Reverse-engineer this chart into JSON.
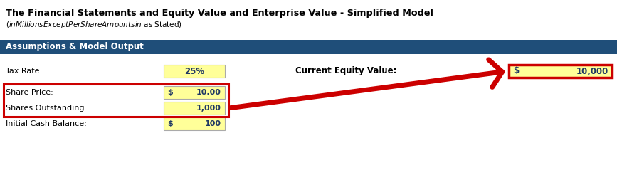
{
  "title": "The Financial Statements and Equity Value and Enterprise Value - Simplified Model",
  "subtitle": "($ in Millions Except Per Share Amounts in $ as Stated)",
  "section_header": "Assumptions & Model Output",
  "section_header_bg": "#1F4E79",
  "section_header_fg": "#ffffff",
  "bg_color": "#ffffff",
  "blue_text": "#1F3864",
  "yellow_fill": "#FFFF99",
  "arrow_color": "#cc0000",
  "red_box_color": "#cc0000",
  "tax_rate_label": "Tax Rate:",
  "tax_rate_value": "25%",
  "equity_label": "Current Equity Value:",
  "equity_dollar": "$",
  "equity_value": "10,000",
  "row_labels": [
    "Share Price:",
    "Shares Outstanding:",
    "Initial Cash Balance:"
  ],
  "row_dollars": [
    "$",
    "",
    "$"
  ],
  "row_values": [
    "10.00",
    "1,000",
    "100"
  ]
}
